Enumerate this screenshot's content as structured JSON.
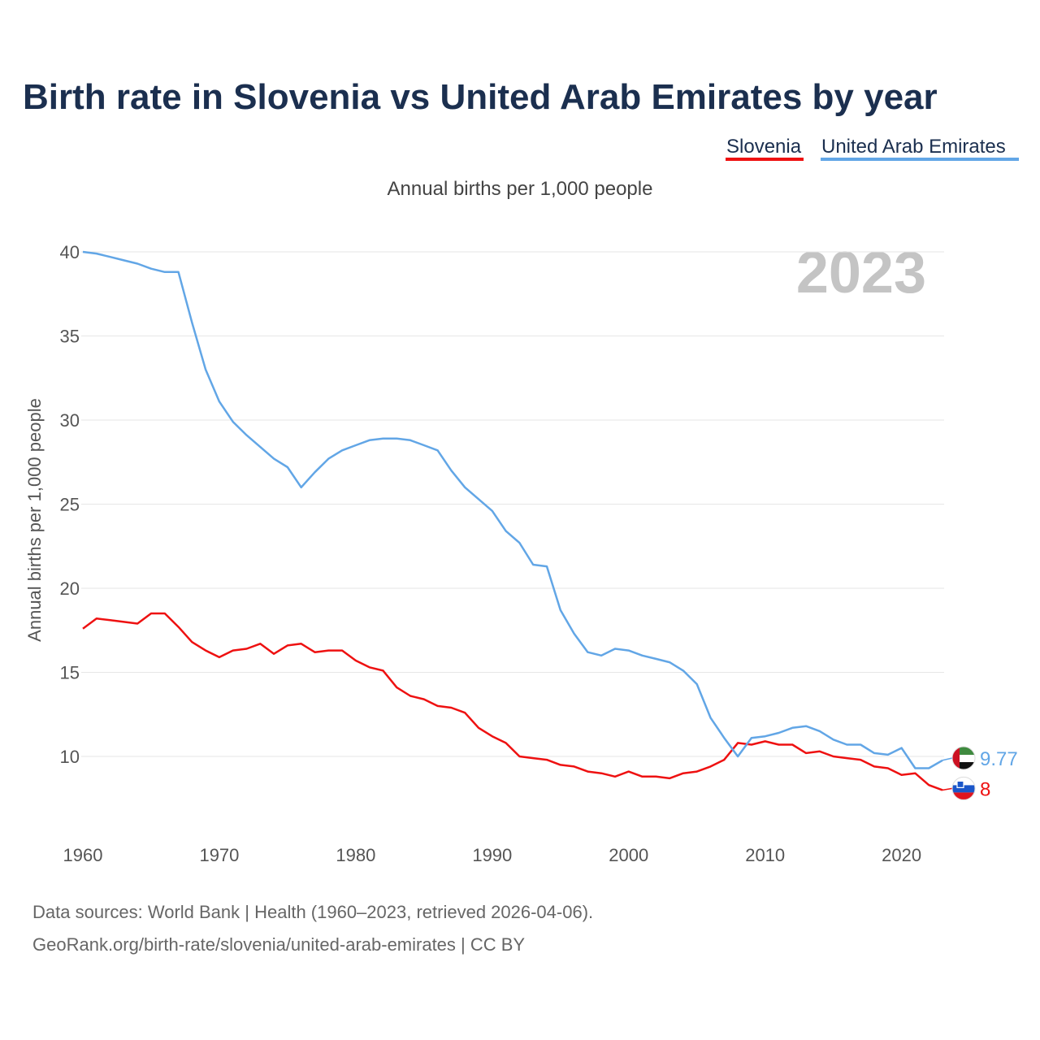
{
  "chart_data": {
    "type": "line",
    "title": "Birth rate in Slovenia vs United Arab Emirates by year",
    "subtitle": "Annual births per 1,000 people",
    "ylabel": "Annual births per 1,000 people",
    "xlabel": "",
    "year_watermark": "2023",
    "xlim": [
      1960,
      2023
    ],
    "ylim": [
      6,
      40
    ],
    "y_ticks": [
      10,
      15,
      20,
      25,
      30,
      35,
      40
    ],
    "x_ticks": [
      1960,
      1970,
      1980,
      1990,
      2000,
      2010,
      2020
    ],
    "grid": true,
    "legend_position": "top-right",
    "x": [
      1960,
      1961,
      1962,
      1963,
      1964,
      1965,
      1966,
      1967,
      1968,
      1969,
      1970,
      1971,
      1972,
      1973,
      1974,
      1975,
      1976,
      1977,
      1978,
      1979,
      1980,
      1981,
      1982,
      1983,
      1984,
      1985,
      1986,
      1987,
      1988,
      1989,
      1990,
      1991,
      1992,
      1993,
      1994,
      1995,
      1996,
      1997,
      1998,
      1999,
      2000,
      2001,
      2002,
      2003,
      2004,
      2005,
      2006,
      2007,
      2008,
      2009,
      2010,
      2011,
      2012,
      2013,
      2014,
      2015,
      2016,
      2017,
      2018,
      2019,
      2020,
      2021,
      2022,
      2023
    ],
    "series": [
      {
        "name": "Slovenia",
        "color": "#ee1111",
        "end_label": "8",
        "flag": "slovenia-flag",
        "values": [
          17.6,
          18.2,
          18.1,
          18.0,
          17.9,
          18.5,
          18.5,
          17.7,
          16.8,
          16.3,
          15.9,
          16.3,
          16.4,
          16.7,
          16.1,
          16.6,
          16.7,
          16.2,
          16.3,
          16.3,
          15.7,
          15.3,
          15.1,
          14.1,
          13.6,
          13.4,
          13.0,
          12.9,
          12.6,
          11.7,
          11.2,
          10.8,
          10.0,
          9.9,
          9.8,
          9.5,
          9.4,
          9.1,
          9.0,
          8.8,
          9.1,
          8.8,
          8.8,
          8.7,
          9.0,
          9.1,
          9.4,
          9.8,
          10.8,
          10.7,
          10.9,
          10.7,
          10.7,
          10.2,
          10.3,
          10.0,
          9.9,
          9.8,
          9.4,
          9.3,
          8.9,
          9.0,
          8.3,
          8.0
        ]
      },
      {
        "name": "United Arab Emirates",
        "color": "#62a6e6",
        "end_label": "9.77",
        "flag": "uae-flag",
        "values": [
          40.0,
          39.9,
          39.7,
          39.5,
          39.3,
          39.0,
          38.8,
          38.8,
          35.8,
          33.0,
          31.1,
          29.9,
          29.1,
          28.4,
          27.7,
          27.2,
          26.0,
          26.9,
          27.7,
          28.2,
          28.5,
          28.8,
          28.9,
          28.9,
          28.8,
          28.5,
          28.2,
          27.0,
          26.0,
          25.3,
          24.6,
          23.4,
          22.7,
          21.4,
          21.3,
          18.7,
          17.3,
          16.2,
          16.0,
          16.4,
          16.3,
          16.0,
          15.8,
          15.6,
          15.1,
          14.3,
          12.3,
          11.1,
          10.0,
          11.1,
          11.2,
          11.4,
          11.7,
          11.8,
          11.5,
          11.0,
          10.7,
          10.7,
          10.2,
          10.1,
          10.5,
          9.3,
          9.3,
          9.77
        ]
      }
    ]
  },
  "source": {
    "line1": "Data sources: World Bank | Health (1960–2023, retrieved 2026-04-06).",
    "line2": "GeoRank.org/birth-rate/slovenia/united-arab-emirates | CC BY"
  }
}
